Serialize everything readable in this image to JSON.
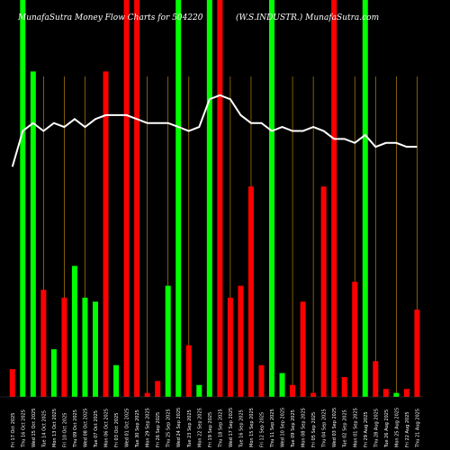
{
  "chart_data": {
    "type": "bar",
    "title_left": "MunafaSutra  Money Flow  Charts for 504220",
    "title_right": "(W.S.INDUSTR.) MunafaSutra.com",
    "xlabel": "",
    "ylabel": "",
    "grid": "vertical",
    "colors": {
      "up": "#00ff00",
      "down": "#ff0000",
      "line": "#ffffff",
      "grid": "#b8860b",
      "background": "#000000"
    },
    "categories": [
      "Fri 17 Oct 2025",
      "Thu 16 Oct 2025",
      "Wed 15 Oct 2025",
      "Tue 14 Oct 2025",
      "Mon 13 Oct 2025",
      "Fri 10 Oct 2025",
      "Thu 09 Oct 2025",
      "Wed 08 Oct 2025",
      "Tue 07 Oct 2025",
      "Mon 06 Oct 2025",
      "Fri 03 Oct 2025",
      "Wed 01 Oct 2025",
      "Tue 30 Sep 2025",
      "Mon 29 Sep 2025",
      "Fri 26 Sep 2025",
      "Thu 25 Sep 2025",
      "Wed 24 Sep 2025",
      "Tue 23 Sep 2025",
      "Mon 22 Sep 2025",
      "Fri 19 Sep 2025",
      "Thu 18 Sep 2025",
      "Wed 17 Sep 2025",
      "Tue 16 Sep 2025",
      "Mon 15 Sep 2025",
      "Fri 12 Sep 2025",
      "Thu 11 Sep 2025",
      "Wed 10 Sep 2025",
      "Tue 09 Sep 2025",
      "Mon 08 Sep 2025",
      "Fri 05 Sep 2025",
      "Thu 04 Sep 2025",
      "Wed 03 Sep 2025",
      "Tue 02 Sep 2025",
      "Mon 01 Sep 2025",
      "Fri 29 Aug 2025",
      "Thu 28 Aug 2025",
      "Tue 26 Aug 2025",
      "Mon 25 Aug 2025",
      "Fri 22 Aug 2025",
      "Thu 21 Aug 2025"
    ],
    "bar_values": [
      7,
      100,
      82,
      27,
      12,
      25,
      33,
      25,
      24,
      82,
      8,
      100,
      100,
      1,
      4,
      28,
      100,
      13,
      3,
      100,
      100,
      25,
      28,
      53,
      8,
      100,
      6,
      3,
      24,
      1,
      53,
      100,
      5,
      29,
      100,
      9,
      2,
      1,
      2,
      22
    ],
    "bar_colors": [
      "down",
      "up",
      "up",
      "down",
      "up",
      "down",
      "up",
      "up",
      "up",
      "down",
      "up",
      "down",
      "down",
      "down",
      "down",
      "up",
      "up",
      "down",
      "up",
      "up",
      "down",
      "down",
      "down",
      "down",
      "down",
      "up",
      "up",
      "down",
      "down",
      "down",
      "down",
      "down",
      "down",
      "down",
      "up",
      "down",
      "down",
      "up",
      "down",
      "down"
    ],
    "line_values": [
      58,
      67,
      69,
      67,
      69,
      68,
      70,
      68,
      70,
      71,
      71,
      71,
      70,
      69,
      69,
      69,
      68,
      67,
      68,
      75,
      76,
      75,
      71,
      69,
      69,
      67,
      68,
      67,
      67,
      68,
      67,
      65,
      65,
      64,
      66,
      63,
      64,
      64,
      63,
      63
    ],
    "ylim": [
      0,
      100
    ]
  }
}
